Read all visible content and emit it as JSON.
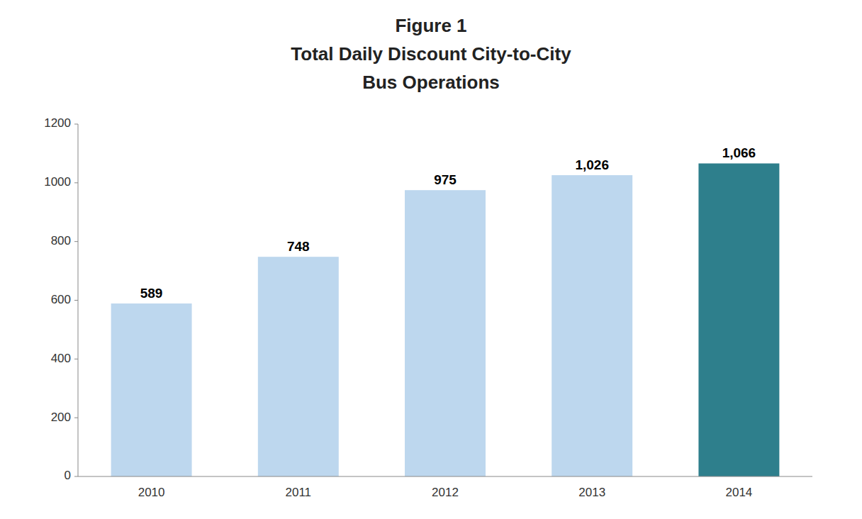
{
  "chart_data": {
    "type": "bar",
    "title": [
      "Figure 1",
      "Total Daily Discount City-to-City",
      "Bus Operations"
    ],
    "categories": [
      "2010",
      "2011",
      "2012",
      "2013",
      "2014"
    ],
    "values": [
      589,
      748,
      975,
      1026,
      1066
    ],
    "value_labels": [
      "589",
      "748",
      "975",
      "1,026",
      "1,066"
    ],
    "colors": [
      "#bdd7ee",
      "#bdd7ee",
      "#bdd7ee",
      "#bdd7ee",
      "#2e7f8c"
    ],
    "ylim": [
      0,
      1200
    ],
    "yticks": [
      0,
      200,
      400,
      600,
      800,
      1000,
      1200
    ],
    "grid": false,
    "data_labels": true
  }
}
